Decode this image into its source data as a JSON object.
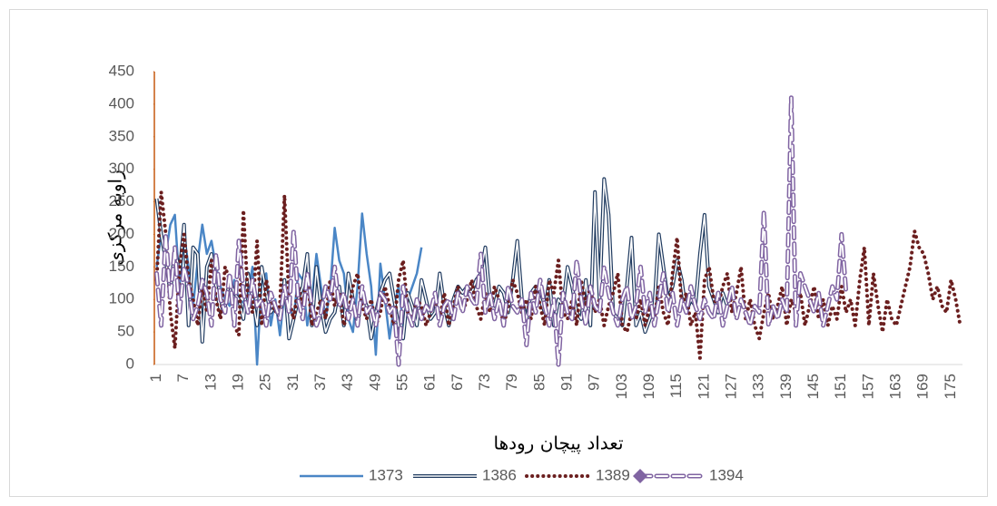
{
  "chart_data": {
    "type": "line",
    "y_label": "زاویه مرکزی",
    "x_label": "تعداد پیچان رودها",
    "ylim": [
      0,
      450
    ],
    "yticks": [
      0,
      50,
      100,
      150,
      200,
      250,
      300,
      350,
      400,
      450
    ],
    "grid": false,
    "legend": "bottom",
    "categories": [
      "1",
      null,
      null,
      null,
      null,
      null,
      "7",
      null,
      null,
      null,
      null,
      null,
      "13",
      null,
      null,
      null,
      null,
      null,
      "19",
      null,
      null,
      null,
      null,
      null,
      "25",
      null,
      null,
      null,
      null,
      null,
      "31",
      null,
      null,
      null,
      null,
      null,
      "37",
      null,
      null,
      null,
      null,
      null,
      "43",
      null,
      null,
      null,
      null,
      null,
      "49",
      null,
      null,
      null,
      null,
      null,
      "55",
      null,
      null,
      null,
      null,
      null,
      "61",
      null,
      null,
      null,
      null,
      null,
      "67",
      null,
      null,
      null,
      null,
      null,
      "73",
      null,
      null,
      null,
      null,
      null,
      "79",
      null,
      null,
      null,
      null,
      null,
      "85",
      null,
      null,
      null,
      null,
      null,
      "91",
      null,
      null,
      null,
      null,
      null,
      "97",
      null,
      null,
      null,
      null,
      null,
      "103",
      null,
      null,
      null,
      null,
      null,
      "109",
      null,
      null,
      null,
      null,
      null,
      "115",
      null,
      null,
      null,
      null,
      null,
      "121",
      null,
      null,
      null,
      null,
      null,
      "127",
      null,
      null,
      null,
      null,
      null,
      "133",
      null,
      null,
      null,
      null,
      null,
      "139",
      null,
      null,
      null,
      null,
      null,
      "145",
      null,
      null,
      null,
      null,
      null,
      "151",
      null,
      null,
      null,
      null,
      null,
      "157",
      null,
      null,
      null,
      null,
      null,
      "163",
      null,
      null,
      null,
      null,
      null,
      "169",
      null,
      null,
      null,
      null,
      null,
      "175",
      null,
      null
    ],
    "series": [
      {
        "name": "1373",
        "color": "#4a86c6",
        "style": "solid",
        "values": [
          150,
          200,
          170,
          215,
          230,
          120,
          200,
          150,
          90,
          160,
          215,
          170,
          190,
          150,
          120,
          100,
          90,
          130,
          100,
          95,
          110,
          150,
          0,
          130,
          140,
          60,
          100,
          45,
          110,
          90,
          70,
          140,
          130,
          60,
          100,
          170,
          120,
          70,
          115,
          210,
          160,
          140,
          70,
          50,
          120,
          232,
          170,
          120,
          15,
          155,
          100,
          40,
          90,
          120,
          60,
          100,
          120,
          140,
          180,
          null,
          null,
          null,
          null,
          null,
          null,
          null,
          null,
          null,
          null,
          null,
          null,
          null,
          null,
          null,
          null,
          null,
          null,
          null,
          null,
          null,
          null,
          null,
          null,
          null,
          null,
          null,
          null,
          null,
          null,
          null,
          null,
          null,
          null,
          null,
          null,
          null,
          null,
          null,
          null,
          null,
          null,
          null,
          null,
          null,
          null,
          null,
          null,
          null,
          null,
          null,
          null,
          null,
          null,
          null,
          null,
          null,
          null,
          null,
          null,
          null,
          null,
          null,
          null,
          null,
          null,
          null,
          null,
          null,
          null,
          null,
          null,
          null,
          null,
          null,
          null,
          null,
          null,
          null,
          null,
          null,
          null,
          null,
          null,
          null,
          null,
          null,
          null,
          null,
          null,
          null,
          null,
          null,
          null,
          null,
          null,
          null,
          null,
          null,
          null,
          null,
          null,
          null,
          null,
          null,
          null,
          null,
          null,
          null,
          null,
          null,
          null,
          null,
          null,
          null,
          null,
          null,
          null
        ]
      },
      {
        "name": "1386",
        "color": "#1f3a5f",
        "style": "double",
        "values": [
          255,
          200,
          160,
          110,
          180,
          140,
          215,
          60,
          180,
          170,
          35,
          150,
          170,
          120,
          80,
          90,
          130,
          110,
          100,
          70,
          140,
          100,
          60,
          150,
          110,
          80,
          90,
          70,
          130,
          40,
          70,
          100,
          120,
          170,
          60,
          150,
          90,
          50,
          70,
          80,
          120,
          60,
          140,
          100,
          60,
          110,
          90,
          40,
          80,
          110,
          130,
          140,
          100,
          60,
          40,
          110,
          90,
          60,
          130,
          100,
          70,
          80,
          140,
          90,
          60,
          100,
          120,
          110,
          120,
          110,
          130,
          140,
          180,
          100,
          90,
          120,
          110,
          80,
          130,
          190,
          100,
          70,
          110,
          120,
          100,
          80,
          130,
          60,
          100,
          90,
          150,
          120,
          80,
          70,
          130,
          60,
          265,
          100,
          285,
          230,
          80,
          70,
          60,
          120,
          195,
          60,
          80,
          50,
          70,
          90,
          200,
          150,
          100,
          120,
          160,
          130,
          80,
          100,
          90,
          170,
          230,
          120,
          100,
          80,
          110,
          90,
          null,
          null,
          null,
          null,
          null,
          null,
          null,
          null,
          null,
          null,
          null,
          null,
          null,
          null,
          null,
          null,
          null,
          null,
          null,
          null,
          null,
          null,
          null,
          null,
          null,
          null,
          null,
          null,
          null,
          null,
          null,
          null,
          null,
          null,
          null,
          null,
          null,
          null,
          null,
          null,
          null,
          null,
          null,
          null,
          null,
          null,
          null,
          null,
          null,
          null,
          null
        ]
      },
      {
        "name": "1389",
        "color": "#6b1f1f",
        "style": "dotted",
        "values": [
          130,
          265,
          200,
          80,
          25,
          150,
          200,
          130,
          100,
          60,
          120,
          80,
          160,
          100,
          70,
          150,
          130,
          60,
          45,
          237,
          100,
          80,
          190,
          60,
          130,
          100,
          80,
          90,
          260,
          100,
          70,
          120,
          90,
          140,
          60,
          80,
          100,
          70,
          130,
          90,
          110,
          60,
          80,
          120,
          140,
          90,
          70,
          100,
          60,
          80,
          120,
          90,
          60,
          130,
          160,
          80,
          70,
          100,
          90,
          60,
          80,
          100,
          70,
          110,
          60,
          90,
          120,
          80,
          100,
          130,
          90,
          70,
          110,
          80,
          120,
          100,
          60,
          90,
          130,
          110,
          80,
          100,
          70,
          120,
          90,
          60,
          130,
          110,
          160,
          80,
          70,
          100,
          60,
          130,
          90,
          120,
          80,
          100,
          60,
          90,
          110,
          140,
          60,
          50,
          80,
          70,
          100,
          60,
          90,
          70,
          120,
          80,
          60,
          140,
          195,
          90,
          110,
          60,
          80,
          10,
          130,
          150,
          100,
          90,
          120,
          140,
          80,
          110,
          150,
          70,
          100,
          60,
          40,
          80,
          110,
          70,
          90,
          120,
          60,
          100,
          80,
          110,
          60,
          90,
          120,
          70,
          100,
          60,
          90,
          70,
          120,
          80,
          100,
          60,
          130,
          180,
          60,
          140,
          90,
          50,
          100,
          70,
          60,
          90,
          120,
          150,
          205,
          180,
          170,
          140,
          100,
          120,
          90,
          80,
          130,
          100,
          60
        ]
      },
      {
        "name": "1394",
        "color": "#8064a2",
        "style": "dashed-double",
        "values": [
          140,
          60,
          200,
          100,
          180,
          80,
          150,
          120,
          70,
          90,
          130,
          110,
          60,
          170,
          100,
          80,
          140,
          60,
          190,
          110,
          80,
          130,
          90,
          100,
          60,
          110,
          90,
          70,
          120,
          80,
          205,
          100,
          70,
          140,
          90,
          60,
          80,
          120,
          100,
          150,
          90,
          110,
          70,
          100,
          60,
          120,
          80,
          90,
          60,
          110,
          100,
          80,
          90,
          0,
          120,
          80,
          60,
          100,
          70,
          90,
          80,
          110,
          60,
          90,
          100,
          70,
          110,
          80,
          120,
          100,
          90,
          170,
          80,
          110,
          70,
          100,
          60,
          120,
          90,
          80,
          100,
          30,
          110,
          80,
          130,
          90,
          60,
          100,
          0,
          110,
          80,
          70,
          160,
          100,
          60,
          120,
          90,
          80,
          150,
          110,
          80,
          60,
          100,
          120,
          70,
          90,
          150,
          80,
          110,
          60,
          100,
          140,
          80,
          110,
          60,
          100,
          80,
          120,
          90,
          70,
          100,
          80,
          70,
          110,
          60,
          90,
          120,
          70,
          100,
          80,
          60,
          90,
          80,
          235,
          60,
          90,
          70,
          100,
          80,
          410,
          60,
          140,
          120,
          100,
          80,
          110,
          60,
          90,
          120,
          100,
          200,
          110,
          null,
          null,
          null,
          null,
          null,
          null,
          null,
          null,
          null,
          null,
          null,
          null,
          null,
          null,
          null,
          null,
          null,
          null,
          null,
          null,
          null,
          null,
          null,
          null,
          null
        ]
      }
    ]
  }
}
